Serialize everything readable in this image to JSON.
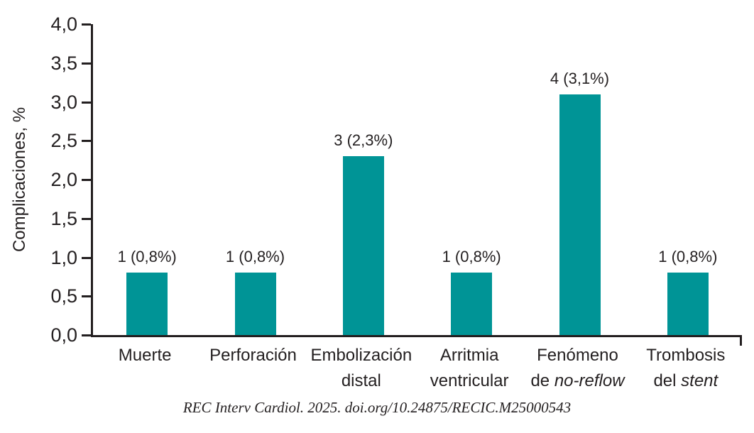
{
  "chart_data": {
    "type": "bar",
    "title": "",
    "ylabel": "Complicaciones, %",
    "xlabel": "",
    "ylim": [
      0,
      4.0
    ],
    "ytick_step": 0.5,
    "ytick_labels": [
      "0,0",
      "0,5",
      "1,0",
      "1,5",
      "2,0",
      "2,5",
      "3,0",
      "3,5",
      "4,0"
    ],
    "grid": false,
    "legend": null,
    "categories": [
      "Muerte",
      "Perforación",
      "Embolización distal",
      "Arritmia ventricular",
      "Fenómeno de no-reflow",
      "Trombosis del stent"
    ],
    "category_labels": [
      {
        "lines": [
          [
            {
              "text": "Muerte",
              "italic": false
            }
          ]
        ]
      },
      {
        "lines": [
          [
            {
              "text": "Perforación",
              "italic": false
            }
          ]
        ]
      },
      {
        "lines": [
          [
            {
              "text": "Embolización",
              "italic": false
            }
          ],
          [
            {
              "text": "distal",
              "italic": false
            }
          ]
        ]
      },
      {
        "lines": [
          [
            {
              "text": "Arritmia",
              "italic": false
            }
          ],
          [
            {
              "text": "ventricular",
              "italic": false
            }
          ]
        ]
      },
      {
        "lines": [
          [
            {
              "text": "Fenómeno",
              "italic": false
            }
          ],
          [
            {
              "text": "de ",
              "italic": false
            },
            {
              "text": "no-reflow",
              "italic": true
            }
          ]
        ]
      },
      {
        "lines": [
          [
            {
              "text": "Trombosis",
              "italic": false
            }
          ],
          [
            {
              "text": "del ",
              "italic": false
            },
            {
              "text": "stent",
              "italic": true
            }
          ]
        ]
      }
    ],
    "counts": [
      1,
      1,
      3,
      1,
      4,
      1
    ],
    "values": [
      0.8,
      0.8,
      2.3,
      0.8,
      3.1,
      0.8
    ],
    "bar_labels": [
      "1 (0,8%)",
      "1 (0,8%)",
      "3 (2,3%)",
      "1 (0,8%)",
      "4 (3,1%)",
      "1 (0,8%)"
    ],
    "colors": {
      "bar": "#009496",
      "axis": "#231f20",
      "text": "#231f20"
    }
  },
  "footer": {
    "citation": "REC Interv Cardiol. 2025. doi.org/10.24875/RECIC.M25000543"
  }
}
